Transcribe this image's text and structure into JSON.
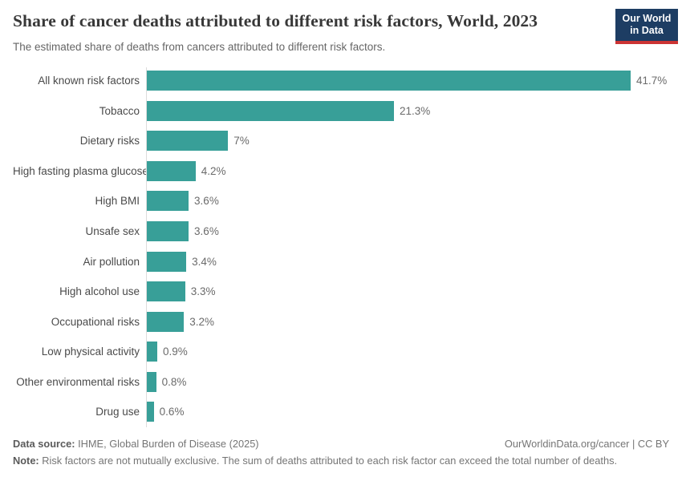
{
  "header": {
    "title": "Share of cancer deaths attributed to different risk factors, World, 2023",
    "subtitle": "The estimated share of deaths from cancers attributed to different risk factors.",
    "logo": {
      "line1": "Our World",
      "line2": "in Data"
    }
  },
  "chart_data": {
    "type": "bar",
    "orientation": "horizontal",
    "categories": [
      "All known risk factors",
      "Tobacco",
      "Dietary risks",
      "High fasting plasma glucose",
      "High BMI",
      "Unsafe sex",
      "Air pollution",
      "High alcohol use",
      "Occupational risks",
      "Low physical activity",
      "Other environmental risks",
      "Drug use"
    ],
    "values": [
      41.7,
      21.3,
      7,
      4.2,
      3.6,
      3.6,
      3.4,
      3.3,
      3.2,
      0.9,
      0.8,
      0.6
    ],
    "value_labels": [
      "41.7%",
      "21.3%",
      "7%",
      "4.2%",
      "3.6%",
      "3.6%",
      "3.4%",
      "3.3%",
      "3.2%",
      "0.9%",
      "0.8%",
      "0.6%"
    ],
    "title": "Share of cancer deaths attributed to different risk factors, World, 2023",
    "xlabel": "",
    "ylabel": "",
    "xlim": [
      0,
      41.7
    ],
    "grid": false,
    "legend": false,
    "bar_color": "#389f98",
    "axis_color": "#dcdcdc"
  },
  "footer": {
    "datasource_label": "Data source:",
    "datasource_value": "IHME, Global Burden of Disease (2025)",
    "link": "OurWorldinData.org/cancer | CC BY",
    "note_label": "Note:",
    "note_value": "Risk factors are not mutually exclusive. The sum of deaths attributed to each risk factor can exceed the total number of deaths."
  }
}
